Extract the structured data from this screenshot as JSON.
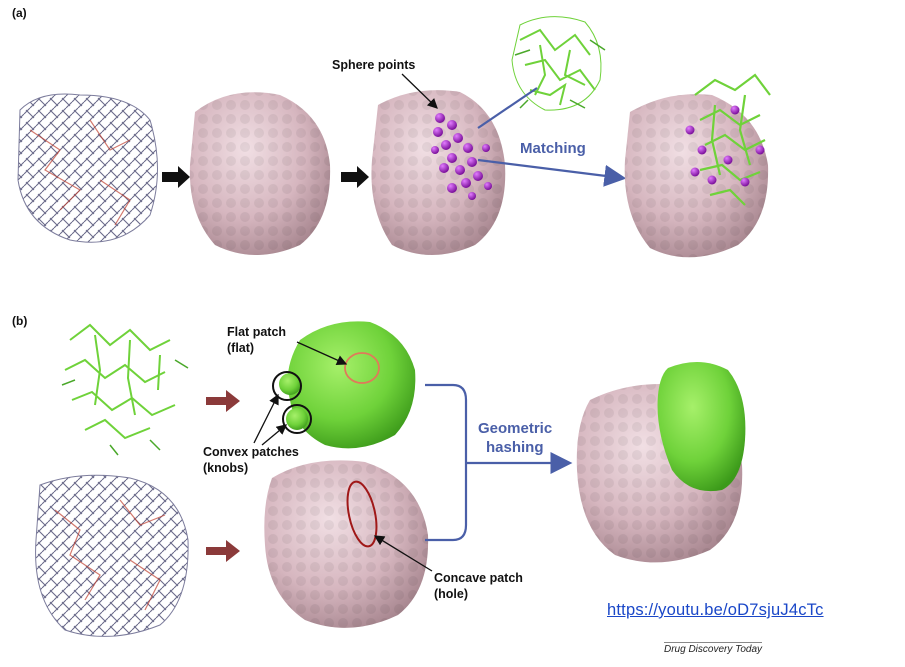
{
  "panel_a": {
    "label": "(a)",
    "sphere_points_label": "Sphere points",
    "matching_label": "Matching"
  },
  "panel_b": {
    "label": "(b)",
    "flat_patch_line1": "Flat patch",
    "flat_patch_line2": "(flat)",
    "convex_patches_line1": "Convex patches",
    "convex_patches_line2": "(knobs)",
    "geometric_hashing_line1": "Geometric",
    "geometric_hashing_line2": "hashing",
    "concave_patch_line1": "Concave patch",
    "concave_patch_line2": "(hole)"
  },
  "link": {
    "text": "https://youtu.be/oD7sjuJ4cTc"
  },
  "source": {
    "text": "Drug Discovery Today"
  },
  "colors": {
    "protein_surface": "#dcc0c8",
    "ligand_green": "#6fd23a",
    "sphere_purple": "#9b1fbf",
    "arrow_blue": "#4a5fa8",
    "arrow_red": "#8b3a3a",
    "arrow_black": "#111111"
  }
}
